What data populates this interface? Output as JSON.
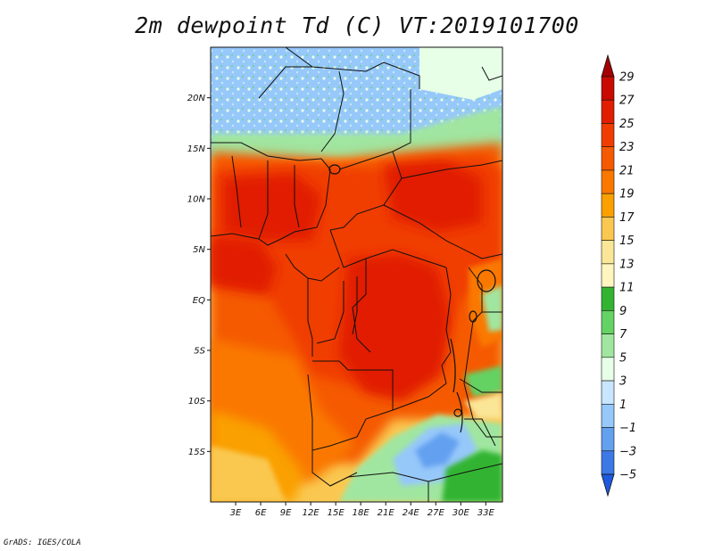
{
  "title": "2m dewpoint Td (C) VT:2019101700",
  "credit": "GrADS: IGES/COLA",
  "map": {
    "projection": "latlon",
    "lon_range": [
      0,
      35
    ],
    "lat_range": [
      -20,
      25
    ],
    "lat_ticks": [
      {
        "value": 20,
        "label": "20N"
      },
      {
        "value": 15,
        "label": "15N"
      },
      {
        "value": 10,
        "label": "10N"
      },
      {
        "value": 5,
        "label": "5N"
      },
      {
        "value": 0,
        "label": "EQ"
      },
      {
        "value": -5,
        "label": "5S"
      },
      {
        "value": -10,
        "label": "10S"
      },
      {
        "value": -15,
        "label": "15S"
      }
    ],
    "lon_ticks": [
      {
        "value": 3,
        "label": "3E"
      },
      {
        "value": 6,
        "label": "6E"
      },
      {
        "value": 9,
        "label": "9E"
      },
      {
        "value": 12,
        "label": "12E"
      },
      {
        "value": 15,
        "label": "15E"
      },
      {
        "value": 18,
        "label": "18E"
      },
      {
        "value": 21,
        "label": "21E"
      },
      {
        "value": 24,
        "label": "24E"
      },
      {
        "value": 27,
        "label": "27E"
      },
      {
        "value": 30,
        "label": "30E"
      },
      {
        "value": 33,
        "label": "33E"
      }
    ]
  },
  "colorbar": {
    "levels": [
      29,
      27,
      25,
      23,
      21,
      19,
      17,
      15,
      13,
      11,
      9,
      7,
      5,
      3,
      1,
      -1,
      -3,
      -5
    ],
    "labels": [
      "29",
      "27",
      "25",
      "23",
      "21",
      "19",
      "17",
      "15",
      "13",
      "11",
      "9",
      "7",
      "5",
      "3",
      "1",
      "−1",
      "−3",
      "−5"
    ],
    "colors": [
      "#a50000",
      "#c80a00",
      "#e11e00",
      "#f03c00",
      "#f55a00",
      "#fa7800",
      "#faa000",
      "#fac850",
      "#fae696",
      "#fff5be",
      "#32b432",
      "#64d264",
      "#a0e6a0",
      "#e6ffe6",
      "#c8e6ff",
      "#96c8fa",
      "#64a0f0",
      "#3c78e6",
      "#1e5adc"
    ],
    "top_color": "#a50000",
    "bottom_color": "#1e5adc"
  }
}
